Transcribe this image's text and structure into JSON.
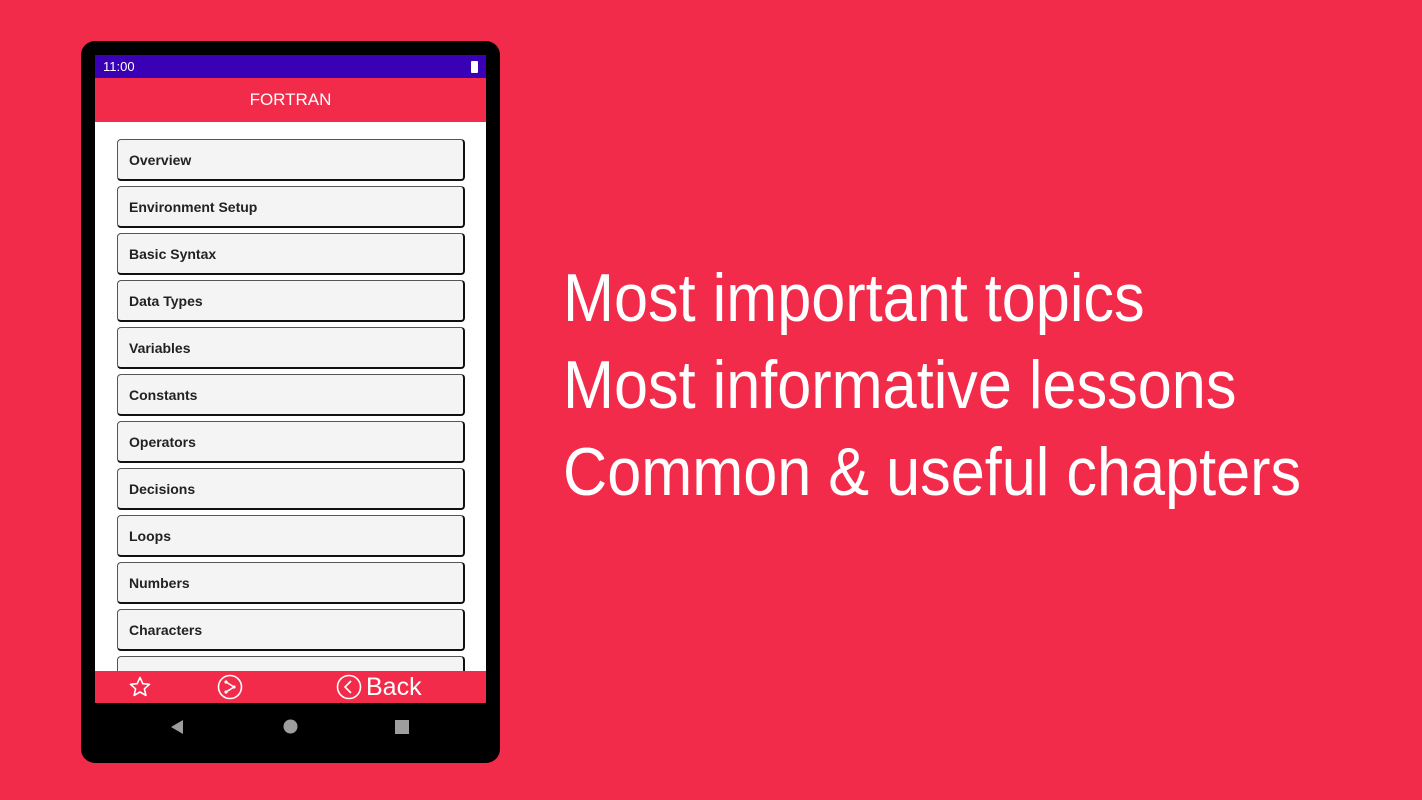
{
  "status_bar": {
    "time": "11:00"
  },
  "app_bar": {
    "title": "FORTRAN"
  },
  "topics": [
    "Overview",
    "Environment Setup",
    "Basic Syntax",
    "Data Types",
    "Variables",
    "Constants",
    "Operators",
    "Decisions",
    "Loops",
    "Numbers",
    "Characters",
    ""
  ],
  "bottom_bar": {
    "back_label": "Back",
    "icons": [
      "star-icon",
      "share-icon",
      "chevron-left-circle-icon"
    ]
  },
  "tagline": [
    "Most important topics",
    "Most informative lessons",
    "Common & useful chapters"
  ],
  "colors": {
    "accent": "#f22b4a",
    "status_bar": "#3a00b5"
  }
}
